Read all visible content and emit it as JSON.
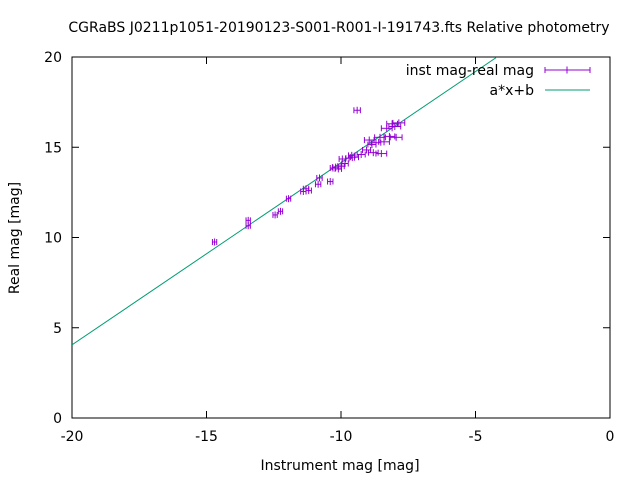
{
  "chart_data": {
    "type": "scatter",
    "title": "CGRaBS J0211p1051-20190123-S001-R001-I-191743.fts Relative photometry",
    "xlabel": "Instrument mag [mag]",
    "ylabel": "Real mag [mag]",
    "xlim": [
      -20,
      0
    ],
    "ylim": [
      0,
      20
    ],
    "x_ticks": [
      "-20",
      "-15",
      "-10",
      "-5",
      "0"
    ],
    "y_ticks": [
      "0",
      "5",
      "10",
      "15",
      "20"
    ],
    "grid": false,
    "legend_position": "top-right",
    "series": [
      {
        "name": "inst mag-real mag",
        "kind": "errorbars",
        "color": "#9400d3",
        "points": [
          {
            "x": -14.7,
            "y": 9.75,
            "xerr": 0.08
          },
          {
            "x": -13.45,
            "y": 10.95,
            "xerr": 0.08
          },
          {
            "x": -13.45,
            "y": 10.65,
            "xerr": 0.08
          },
          {
            "x": -12.45,
            "y": 11.25,
            "xerr": 0.08
          },
          {
            "x": -12.25,
            "y": 11.45,
            "xerr": 0.08
          },
          {
            "x": -11.95,
            "y": 12.15,
            "xerr": 0.08
          },
          {
            "x": -11.4,
            "y": 12.55,
            "xerr": 0.1
          },
          {
            "x": -11.3,
            "y": 12.7,
            "xerr": 0.1
          },
          {
            "x": -11.2,
            "y": 12.6,
            "xerr": 0.1
          },
          {
            "x": -10.85,
            "y": 12.95,
            "xerr": 0.1
          },
          {
            "x": -10.8,
            "y": 13.3,
            "xerr": 0.1
          },
          {
            "x": -10.4,
            "y": 13.1,
            "xerr": 0.1
          },
          {
            "x": -10.3,
            "y": 13.85,
            "xerr": 0.1
          },
          {
            "x": -10.2,
            "y": 13.9,
            "xerr": 0.12
          },
          {
            "x": -10.1,
            "y": 13.8,
            "xerr": 0.12
          },
          {
            "x": -10.0,
            "y": 13.95,
            "xerr": 0.12
          },
          {
            "x": -9.95,
            "y": 14.35,
            "xerr": 0.12
          },
          {
            "x": -9.85,
            "y": 14.1,
            "xerr": 0.12
          },
          {
            "x": -9.7,
            "y": 14.4,
            "xerr": 0.12
          },
          {
            "x": -9.6,
            "y": 14.55,
            "xerr": 0.12
          },
          {
            "x": -9.5,
            "y": 14.45,
            "xerr": 0.15
          },
          {
            "x": -9.4,
            "y": 17.05,
            "xerr": 0.12
          },
          {
            "x": -9.25,
            "y": 14.6,
            "xerr": 0.15
          },
          {
            "x": -9.05,
            "y": 14.85,
            "xerr": 0.15
          },
          {
            "x": -8.95,
            "y": 15.4,
            "xerr": 0.18
          },
          {
            "x": -8.85,
            "y": 15.15,
            "xerr": 0.15
          },
          {
            "x": -8.8,
            "y": 14.7,
            "xerr": 0.18
          },
          {
            "x": -8.7,
            "y": 15.25,
            "xerr": 0.18
          },
          {
            "x": -8.55,
            "y": 15.55,
            "xerr": 0.2
          },
          {
            "x": -8.5,
            "y": 14.65,
            "xerr": 0.2
          },
          {
            "x": -8.4,
            "y": 15.3,
            "xerr": 0.2
          },
          {
            "x": -8.3,
            "y": 16.05,
            "xerr": 0.2
          },
          {
            "x": -8.2,
            "y": 15.6,
            "xerr": 0.2
          },
          {
            "x": -8.1,
            "y": 16.3,
            "xerr": 0.2
          },
          {
            "x": -8.0,
            "y": 16.15,
            "xerr": 0.22
          },
          {
            "x": -7.95,
            "y": 15.55,
            "xerr": 0.22
          },
          {
            "x": -7.85,
            "y": 16.35,
            "xerr": 0.22
          }
        ]
      },
      {
        "name": "a*x+b",
        "kind": "line",
        "color": "#009e73",
        "x": [
          -20,
          -4.2
        ],
        "y": [
          4.05,
          20
        ]
      }
    ]
  }
}
